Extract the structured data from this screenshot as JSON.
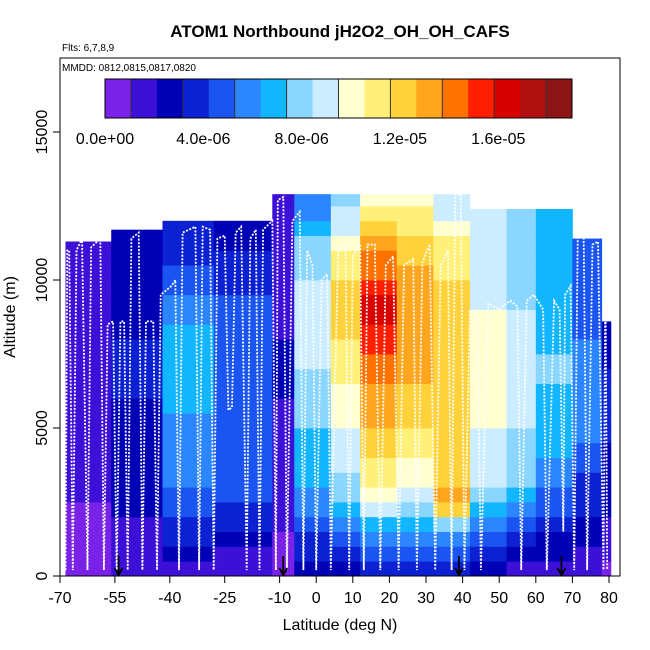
{
  "chart_data": {
    "type": "heatmap",
    "title": "ATOM1 Northbound jH2O2_OH_OH_CAFS",
    "flights_label": "Flts: 6,7,8,9",
    "dates_label": "MMDD: 0812,0815,0817,0820",
    "xlabel": "Latitude (deg N)",
    "ylabel": "Altitude (m)",
    "xlim": [
      -70,
      83
    ],
    "ylim": [
      0,
      17500
    ],
    "x_ticks": [
      -70,
      -55,
      -40,
      -25,
      -10,
      0,
      10,
      20,
      30,
      40,
      50,
      60,
      70,
      80
    ],
    "x_tick_labels": [
      "-70",
      "-55",
      "-40",
      "-25",
      "-10",
      "0",
      "10",
      "20",
      "30",
      "40",
      "50",
      "60",
      "70",
      "80"
    ],
    "y_ticks": [
      0,
      5000,
      10000,
      15000
    ],
    "y_tick_labels": [
      "0",
      "5000",
      "10000",
      "15000"
    ],
    "colorbar": {
      "min": 0,
      "max": 1.9e-05,
      "tick_values": [
        0,
        4e-06,
        8e-06,
        1.2e-05,
        1.6e-05
      ],
      "tick_labels": [
        "0.0e+00",
        "4.0e-06",
        "8.0e-06",
        "1.2e-05",
        "1.6e-05"
      ],
      "colors": [
        "#7a22e8",
        "#3d10d8",
        "#0000b4",
        "#0c22d2",
        "#1a55f2",
        "#2b86ff",
        "#12b6ff",
        "#8ad6ff",
        "#ccecff",
        "#ffffd2",
        "#fff07a",
        "#ffd23c",
        "#ffa51e",
        "#ff7200",
        "#ff1e00",
        "#d80000",
        "#b01010",
        "#8c1414"
      ]
    },
    "grid": false,
    "columns": [
      {
        "x0": -68.5,
        "x1": -56,
        "top": 11300,
        "profile": [
          [
            0,
            0.3
          ],
          [
            1500,
            0.8
          ],
          [
            3000,
            1.2
          ],
          [
            5000,
            1.5
          ],
          [
            7000,
            1.7
          ],
          [
            9000,
            1.9
          ],
          [
            10500,
            1.6
          ]
        ]
      },
      {
        "x0": -56,
        "x1": -42,
        "top": 11700,
        "profile": [
          [
            0,
            1.0
          ],
          [
            1500,
            1.9
          ],
          [
            3000,
            2.7
          ],
          [
            5000,
            3.0
          ],
          [
            7000,
            3.4
          ],
          [
            9000,
            3.0
          ],
          [
            11000,
            2.5
          ]
        ]
      },
      {
        "x0": -42,
        "x1": -28,
        "top": 12000,
        "profile": [
          [
            0,
            1.5
          ],
          [
            1500,
            3.5
          ],
          [
            3000,
            5.2
          ],
          [
            5000,
            6.2
          ],
          [
            7000,
            7.0
          ],
          [
            9000,
            6.0
          ],
          [
            11000,
            3.5
          ]
        ]
      },
      {
        "x0": -28,
        "x1": -12,
        "top": 12000,
        "profile": [
          [
            0,
            1.2
          ],
          [
            1500,
            3.0
          ],
          [
            3000,
            4.5
          ],
          [
            5000,
            5.0
          ],
          [
            7000,
            5.2
          ],
          [
            9000,
            4.5
          ],
          [
            11500,
            3.0
          ]
        ]
      },
      {
        "x0": -12,
        "x1": -6,
        "top": 12900,
        "profile": [
          [
            0,
            0.5
          ],
          [
            1500,
            1.0
          ],
          [
            3000,
            1.5
          ],
          [
            5000,
            2.0
          ],
          [
            7000,
            2.2
          ],
          [
            9000,
            2.0
          ],
          [
            12000,
            1.5
          ]
        ]
      },
      {
        "x0": -6,
        "x1": 4,
        "top": 12900,
        "profile": [
          [
            0,
            2.0
          ],
          [
            1500,
            4.5
          ],
          [
            3000,
            6.5
          ],
          [
            5000,
            7.5
          ],
          [
            7000,
            8.5
          ],
          [
            9000,
            9.0
          ],
          [
            11000,
            8.0
          ],
          [
            12500,
            6.0
          ]
        ]
      },
      {
        "x0": 4,
        "x1": 12,
        "top": 12900,
        "profile": [
          [
            0,
            2.5
          ],
          [
            1500,
            5.5
          ],
          [
            3000,
            8.0
          ],
          [
            5000,
            9.5
          ],
          [
            7000,
            11.0
          ],
          [
            9000,
            12.0
          ],
          [
            11000,
            11.0
          ],
          [
            12500,
            8.0
          ]
        ]
      },
      {
        "x0": 12,
        "x1": 22,
        "top": 12900,
        "profile": [
          [
            0,
            3.0
          ],
          [
            1500,
            6.5
          ],
          [
            3000,
            10.5
          ],
          [
            5000,
            12.5
          ],
          [
            7000,
            14.0
          ],
          [
            9000,
            16.5
          ],
          [
            11000,
            13.5
          ],
          [
            12500,
            10.0
          ]
        ]
      },
      {
        "x0": 22,
        "x1": 32,
        "top": 12900,
        "profile": [
          [
            0,
            3.0
          ],
          [
            1500,
            6.5
          ],
          [
            3000,
            9.5
          ],
          [
            5000,
            11.5
          ],
          [
            7000,
            13.0
          ],
          [
            9000,
            13.5
          ],
          [
            11000,
            12.5
          ],
          [
            12500,
            10.5
          ]
        ]
      },
      {
        "x0": 32,
        "x1": 42,
        "top": 12900,
        "profile": [
          [
            0,
            3.0
          ],
          [
            1500,
            6.5
          ],
          [
            2500,
            14.0
          ],
          [
            3500,
            12.0
          ],
          [
            5000,
            12.0
          ],
          [
            7000,
            12.5
          ],
          [
            9000,
            12.0
          ],
          [
            11000,
            11.0
          ],
          [
            12500,
            9.0
          ]
        ]
      },
      {
        "x0": 42,
        "x1": 52,
        "top": 12400,
        "profile": [
          [
            0,
            2.0
          ],
          [
            1500,
            5.0
          ],
          [
            3000,
            8.5
          ],
          [
            5000,
            9.5
          ],
          [
            7000,
            10.0
          ],
          [
            9000,
            9.5
          ],
          [
            11000,
            8.5
          ]
        ]
      },
      {
        "x0": 52,
        "x1": 60,
        "top": 12400,
        "profile": [
          [
            0,
            1.5
          ],
          [
            1500,
            4.0
          ],
          [
            3000,
            7.5
          ],
          [
            5000,
            8.5
          ],
          [
            7000,
            9.0
          ],
          [
            9000,
            8.5
          ],
          [
            11000,
            8.0
          ]
        ]
      },
      {
        "x0": 60,
        "x1": 70,
        "top": 12400,
        "profile": [
          [
            0,
            1.2
          ],
          [
            1500,
            3.5
          ],
          [
            3000,
            5.5
          ],
          [
            5000,
            7.0
          ],
          [
            7000,
            7.5
          ],
          [
            9000,
            7.0
          ],
          [
            11000,
            6.5
          ]
        ]
      },
      {
        "x0": 70,
        "x1": 78,
        "top": 11400,
        "profile": [
          [
            0,
            1.0
          ],
          [
            1500,
            2.5
          ],
          [
            3000,
            4.0
          ],
          [
            5000,
            5.5
          ],
          [
            7000,
            5.5
          ],
          [
            9000,
            5.0
          ],
          [
            11000,
            4.5
          ]
        ]
      },
      {
        "x0": 78,
        "x1": 80.5,
        "top": 8600,
        "profile": [
          [
            0,
            0.8
          ],
          [
            2000,
            2.0
          ],
          [
            5000,
            3.5
          ],
          [
            8000,
            3.0
          ]
        ]
      }
    ],
    "flight_track": [
      [
        -68.5,
        200
      ],
      [
        -68.0,
        11000
      ],
      [
        -67.5,
        11000
      ],
      [
        -66.5,
        200
      ],
      [
        -65.5,
        11000
      ],
      [
        -64.0,
        11400
      ],
      [
        -62.5,
        200
      ],
      [
        -61.5,
        11100
      ],
      [
        -59.0,
        11400
      ],
      [
        -58.0,
        200
      ],
      [
        -57.0,
        8500
      ],
      [
        -55.5,
        8600
      ],
      [
        -54.5,
        200
      ],
      [
        -53.5,
        8600
      ],
      [
        -52.5,
        8600
      ],
      [
        -51.5,
        200
      ],
      [
        -50.5,
        11400
      ],
      [
        -48.5,
        11600
      ],
      [
        -47.5,
        200
      ],
      [
        -46.5,
        8600
      ],
      [
        -44.5,
        8600
      ],
      [
        -43.5,
        200
      ],
      [
        -42.5,
        9500
      ],
      [
        -39.5,
        9800
      ],
      [
        -38.5,
        10000
      ],
      [
        -37.5,
        200
      ],
      [
        -36.5,
        11600
      ],
      [
        -33.0,
        11800
      ],
      [
        -32.0,
        200
      ],
      [
        -31.0,
        11800
      ],
      [
        -29.0,
        11700
      ],
      [
        -28.0,
        200
      ],
      [
        -27.0,
        11400
      ],
      [
        -25.0,
        11500
      ],
      [
        -24.0,
        5600
      ],
      [
        -23.0,
        5700
      ],
      [
        -22.0,
        11600
      ],
      [
        -20.5,
        11800
      ],
      [
        -19.0,
        200
      ],
      [
        -18.0,
        11400
      ],
      [
        -16.5,
        11700
      ],
      [
        -15.5,
        200
      ],
      [
        -14.5,
        11700
      ],
      [
        -12.0,
        12000
      ],
      [
        -11.0,
        200
      ],
      [
        -10.5,
        12700
      ],
      [
        -9.0,
        12800
      ],
      [
        -8.0,
        200
      ],
      [
        -6.5,
        12000
      ],
      [
        -4.5,
        12300
      ],
      [
        -3.5,
        200
      ],
      [
        -2.5,
        11000
      ],
      [
        -1.0,
        10500
      ],
      [
        0.0,
        200
      ],
      [
        1.5,
        10000
      ],
      [
        3.0,
        10200
      ],
      [
        4.0,
        200
      ],
      [
        6.0,
        11000
      ],
      [
        8.0,
        11200
      ],
      [
        9.0,
        200
      ],
      [
        10.0,
        10800
      ],
      [
        12.0,
        11200
      ],
      [
        13.0,
        200
      ],
      [
        14.0,
        11200
      ],
      [
        16.0,
        11200
      ],
      [
        17.5,
        200
      ],
      [
        19.0,
        10500
      ],
      [
        21.0,
        10800
      ],
      [
        22.5,
        200
      ],
      [
        24.0,
        10500
      ],
      [
        26.5,
        10700
      ],
      [
        27.5,
        200
      ],
      [
        29.0,
        10600
      ],
      [
        31.0,
        11200
      ],
      [
        32.5,
        200
      ],
      [
        34.0,
        10500
      ],
      [
        36.0,
        11000
      ],
      [
        37.0,
        200
      ],
      [
        38.0,
        12900
      ],
      [
        39.5,
        12900
      ],
      [
        40.5,
        200
      ],
      [
        42.0,
        9000
      ],
      [
        44.0,
        8800
      ],
      [
        45.0,
        200
      ],
      [
        47.0,
        9200
      ],
      [
        50.0,
        9000
      ],
      [
        53.0,
        9300
      ],
      [
        55.0,
        9100
      ],
      [
        56.0,
        200
      ],
      [
        57.5,
        9300
      ],
      [
        59.5,
        9500
      ],
      [
        61.0,
        9200
      ],
      [
        62.0,
        9000
      ],
      [
        63.0,
        200
      ],
      [
        65.0,
        9300
      ],
      [
        66.5,
        9000
      ],
      [
        67.5,
        1500
      ],
      [
        68.0,
        9500
      ],
      [
        69.5,
        9800
      ],
      [
        70.5,
        200
      ],
      [
        71.5,
        12000
      ],
      [
        73.0,
        12400
      ],
      [
        74.0,
        200
      ],
      [
        75.5,
        11200
      ],
      [
        77.0,
        11300
      ],
      [
        78.5,
        200
      ],
      [
        79.0,
        10200
      ],
      [
        79.5,
        200
      ]
    ],
    "markers": [
      -54,
      -9,
      39,
      67
    ]
  }
}
